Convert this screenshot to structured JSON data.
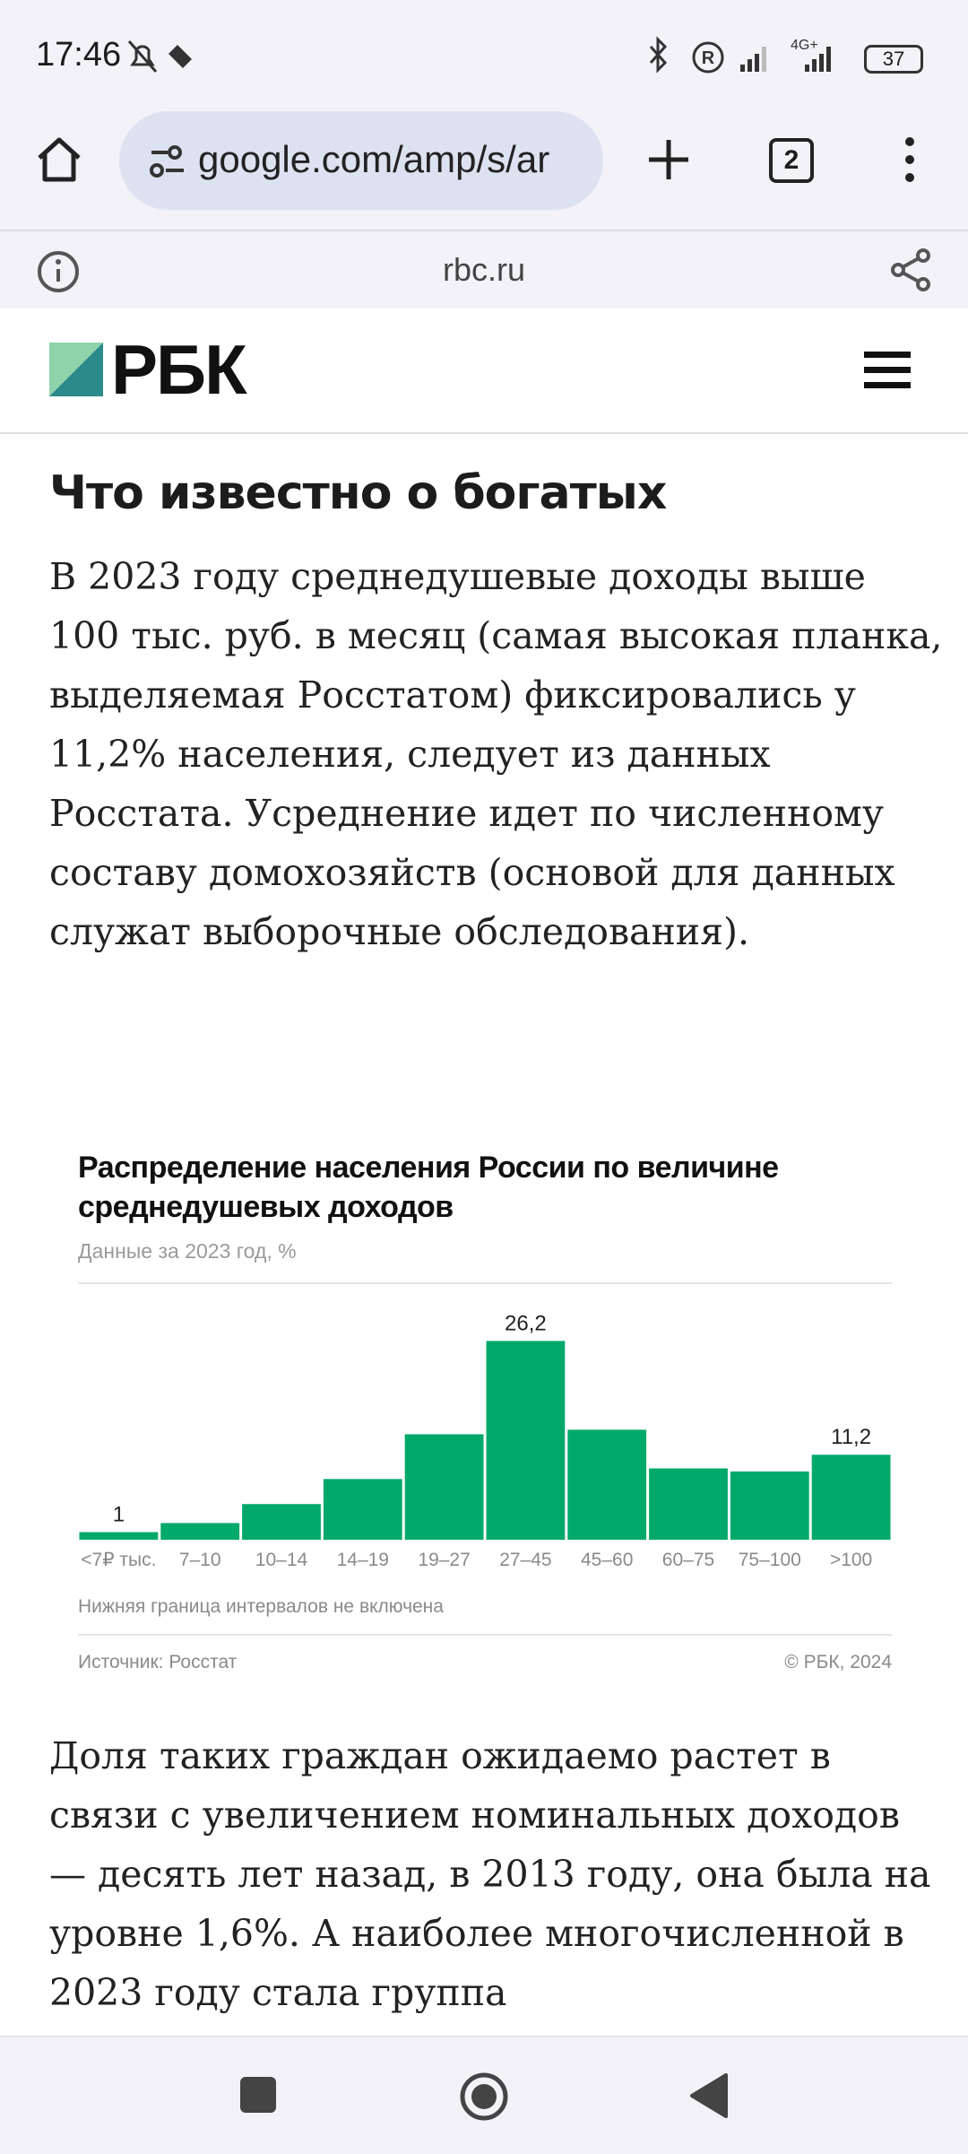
{
  "status_bar": {
    "time": "17:46",
    "network": "4G+",
    "battery": "37"
  },
  "browser": {
    "url": "google.com/amp/s/ar",
    "tab_count": "2",
    "site": "rbc.ru"
  },
  "site_header": {
    "logo": "РБК"
  },
  "article": {
    "heading": "Что известно о богатых",
    "paragraphs": [
      "В 2023 году среднедушевые доходы выше 100 тыс. руб. в месяц (самая высокая планка, выделяемая Росстатом) фиксировались у 11,2% населения, следует из данных Росстата. Усреднение идет по численному составу домохозяйств (основой для данных служат выборочные обследования).",
      "Доля таких граждан ожидаемо растет в связи с увеличением номинальных доходов — десять лет назад, в 2013 году, она была на уровне 1,6%. А наиболее многочисленной в 2023 году стала группа"
    ]
  },
  "chart_data": {
    "type": "bar",
    "title": "Распределение населения России по величине среднедушевых доходов",
    "subtitle": "Данные за 2023 год, %",
    "categories": [
      "<7₽ тыс.",
      "7–10",
      "10–14",
      "14–19",
      "19–27",
      "27–45",
      "45–60",
      "60–75",
      "75–100",
      ">100"
    ],
    "values": [
      1,
      2.2,
      4.7,
      8.0,
      13.9,
      26.2,
      14.5,
      9.4,
      9.0,
      11.2
    ],
    "value_labels": [
      "1",
      null,
      null,
      null,
      null,
      "26,2",
      null,
      null,
      null,
      "11,2"
    ],
    "color": "#02a96a",
    "note": "Нижняя граница интервалов не включена",
    "source": "Источник: Росстат",
    "credit": "© РБК, 2024"
  }
}
